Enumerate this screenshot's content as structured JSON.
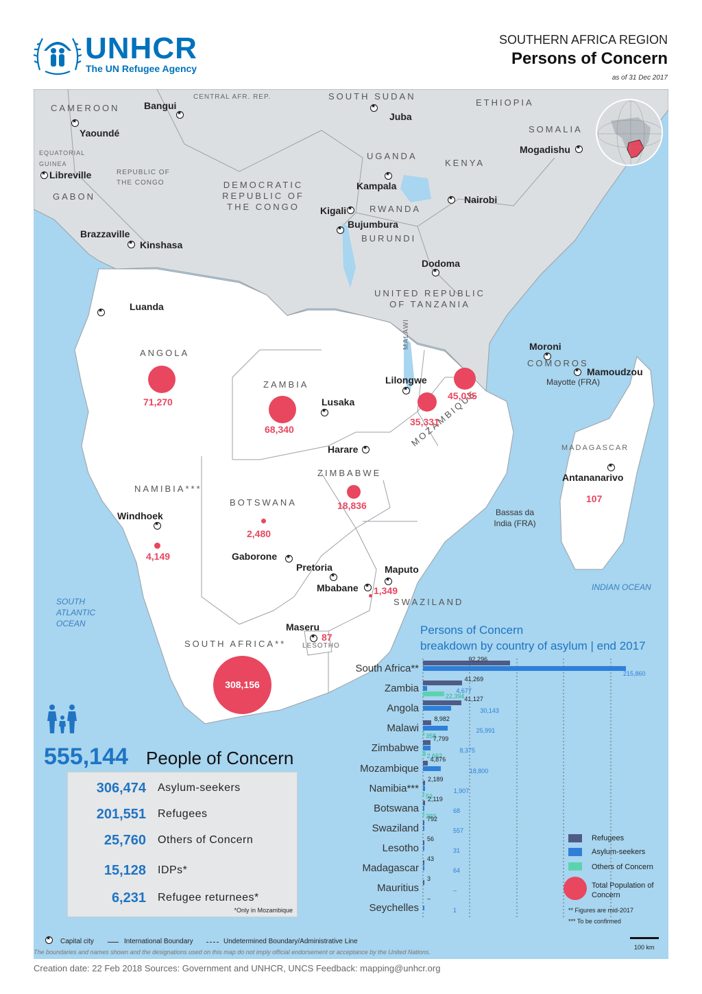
{
  "header": {
    "logo_word": "UNHCR",
    "logo_sub": "The UN Refugee Agency",
    "region": "SOUTHERN AFRICA REGION",
    "title": "Persons of Concern",
    "as_of": "as of 31 Dec 2017"
  },
  "colors": {
    "unhcr_blue": "#0072bc",
    "bubble_red": "#e8475f",
    "refugees": "#4f5b87",
    "asylum_seekers": "#2f7fd8",
    "others": "#5cd3b0",
    "sea": "#a8d5ef",
    "land_other": "#dcdfe2",
    "land_region": "#ffffff"
  },
  "map": {
    "countries_other": [
      "CAMEROON",
      "CENTRAL AFR. REP.",
      "SOUTH SUDAN",
      "ETHIOPIA",
      "SOMALIA",
      "EQUATORIAL GUINEA",
      "REPUBLIC OF THE CONGO",
      "GABON",
      "DEMOCRATIC REPUBLIC OF THE CONGO",
      "UGANDA",
      "KENYA",
      "RWANDA",
      "BURUNDI",
      "UNITED REPUBLIC OF TANZANIA"
    ],
    "countries_region": [
      "ANGOLA",
      "ZAMBIA",
      "MALAWI",
      "MOZAMBIQUE",
      "COMOROS",
      "MADAGASCAR",
      "ZIMBABWE",
      "NAMIBIA***",
      "BOTSWANA",
      "SOUTH AFRICA**",
      "LESOTHO",
      "SWAZILAND"
    ],
    "cities": [
      "Bangui",
      "Yaoundé",
      "Juba",
      "Mogadishu",
      "Libreville",
      "Kampala",
      "Nairobi",
      "Kigali",
      "Bujumbura",
      "Brazzaville",
      "Kinshasa",
      "Dodoma",
      "Luanda",
      "Moroni",
      "Mamoudzou",
      "Lilongwe",
      "Lusaka",
      "Harare",
      "Antananarivo",
      "Windhoek",
      "Gaborone",
      "Pretoria",
      "Maputo",
      "Mbabane",
      "Maseru"
    ],
    "places": [
      "Mayotte (FRA)",
      "Bassas da India (FRA)"
    ],
    "oceans": [
      "SOUTH ATLANTIC OCEAN",
      "INDIAN OCEAN"
    ],
    "values": [
      {
        "country": "Angola",
        "label": "71,270",
        "value": 71270
      },
      {
        "country": "Zambia",
        "label": "68,340",
        "value": 68340
      },
      {
        "country": "Malawi",
        "label": "35,331",
        "value": 35331
      },
      {
        "country": "Mozambique",
        "label": "45,035",
        "value": 45035
      },
      {
        "country": "Zimbabwe",
        "label": "18,836",
        "value": 18836
      },
      {
        "country": "Botswana",
        "label": "2,480",
        "value": 2480
      },
      {
        "country": "Namibia",
        "label": "4,149",
        "value": 4149
      },
      {
        "country": "Swaziland",
        "label": "1,349",
        "value": 1349
      },
      {
        "country": "Lesotho",
        "label": "87",
        "value": 87
      },
      {
        "country": "Madagascar",
        "label": "107",
        "value": 107
      },
      {
        "country": "South Africa",
        "label": "308,156",
        "value": 308156
      }
    ]
  },
  "summary": {
    "total": "555,144",
    "total_label": "People of Concern",
    "rows": [
      {
        "num": "306,474",
        "label": "Asylum-seekers"
      },
      {
        "num": "201,551",
        "label": "Refugees"
      },
      {
        "num": "25,760",
        "label": "Others of Concern"
      },
      {
        "num": "15,128",
        "label": "IDPs*"
      },
      {
        "num": "6,231",
        "label": "Refugee returnees*"
      }
    ],
    "note": "*Only in Mozambique"
  },
  "chart_data": {
    "type": "bar",
    "orientation": "horizontal",
    "title": "Persons of Concern",
    "subtitle": "breakdown by country of asylum | end 2017",
    "categories": [
      "South Africa**",
      "Zambia",
      "Angola",
      "Malawi",
      "Zimbabwe",
      "Mozambique",
      "Namibia***",
      "Botswana",
      "Swaziland",
      "Lesotho",
      "Madagascar",
      "Mauritius",
      "Seychelles"
    ],
    "series": [
      {
        "name": "Refugees",
        "values": [
          92296,
          41269,
          41127,
          8982,
          7799,
          4876,
          2189,
          2119,
          792,
          56,
          43,
          3,
          null
        ],
        "labels": [
          "92,296",
          "41,269",
          "41,127",
          "8,982",
          "7,799",
          "4,876",
          "2,189",
          "2,119",
          "792",
          "56",
          "43",
          "3",
          "–"
        ]
      },
      {
        "name": "Asylum-seekers",
        "values": [
          215860,
          4677,
          30143,
          25991,
          8375,
          18800,
          1907,
          68,
          557,
          31,
          64,
          null,
          1
        ],
        "labels": [
          "215,860",
          "4,677",
          "30,143",
          "25,991",
          "8,375",
          "18,800",
          "1,907",
          "68",
          "557",
          "31",
          "64",
          "–",
          "1"
        ]
      },
      {
        "name": "Others of Concern",
        "values": [
          null,
          22394,
          null,
          358,
          2662,
          null,
          53,
          293,
          null,
          null,
          null,
          null,
          null
        ],
        "labels": [
          "",
          "22,394",
          "",
          "358",
          "2,662",
          "",
          "53",
          "293",
          "",
          "",
          "",
          "",
          ""
        ]
      }
    ],
    "grid": true,
    "legend": {
      "items": [
        "Refugees",
        "Asylum-seekers",
        "Others of Concern",
        "Total Population of Concern"
      ],
      "position": "bottom-right",
      "notes": [
        "** Figures are mid-2017",
        "*** To be confirmed"
      ]
    }
  },
  "footer_legend": {
    "capital": "Capital city",
    "intl": "International Boundary",
    "undet": "Undetermined Boundary/Administrative Line",
    "scale": "100 km"
  },
  "disclaimer": "The boundaries and names shown and the designations used on this map do not imply official endorsement or acceptance by the United Nations.",
  "footer": "Creation date: 22 Feb 2018    Sources: Government and UNHCR, UNCS    Feedback: mapping@unhcr.org"
}
